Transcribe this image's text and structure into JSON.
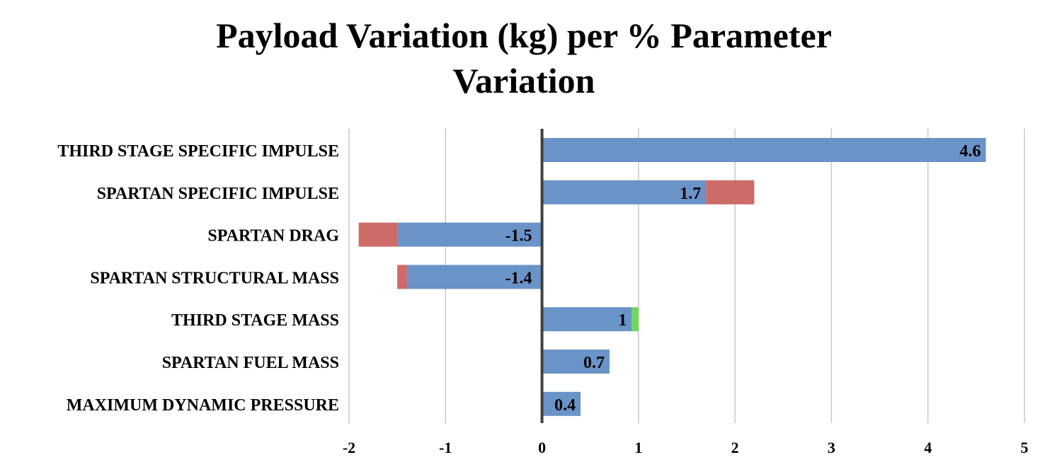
{
  "chart_data": {
    "type": "bar",
    "orientation": "horizontal",
    "stacked": true,
    "title_lines": [
      "Payload Variation (kg) per % Parameter",
      "Variation"
    ],
    "xlim": [
      -2,
      5
    ],
    "x_ticks": [
      "-2",
      "-1",
      "0",
      "1",
      "2",
      "3",
      "4",
      "5"
    ],
    "grid": true,
    "categories": [
      "THIRD STAGE SPECIFIC IMPULSE",
      "SPARTAN SPECIFIC IMPULSE",
      "SPARTAN DRAG",
      "SPARTAN STRUCTURAL MASS",
      "THIRD STAGE MASS",
      "SPARTAN FUEL MASS",
      "MAXIMUM DYNAMIC PRESSURE"
    ],
    "series": [
      {
        "color": "#6a93c8",
        "values": [
          4.6,
          1.7,
          -1.5,
          -1.4,
          0.93,
          0.7,
          0.4
        ]
      },
      {
        "color": "#cc6b68",
        "values": [
          0,
          0.5,
          -0.4,
          -0.1,
          0,
          0,
          0
        ]
      },
      {
        "color": "#6fd85a",
        "values": [
          0,
          0,
          0,
          0,
          0.07,
          0,
          0
        ]
      }
    ],
    "data_labels": [
      "4.6",
      "1.7",
      "-1.5",
      "-1.4",
      "1",
      "0.7",
      "0.4"
    ]
  }
}
